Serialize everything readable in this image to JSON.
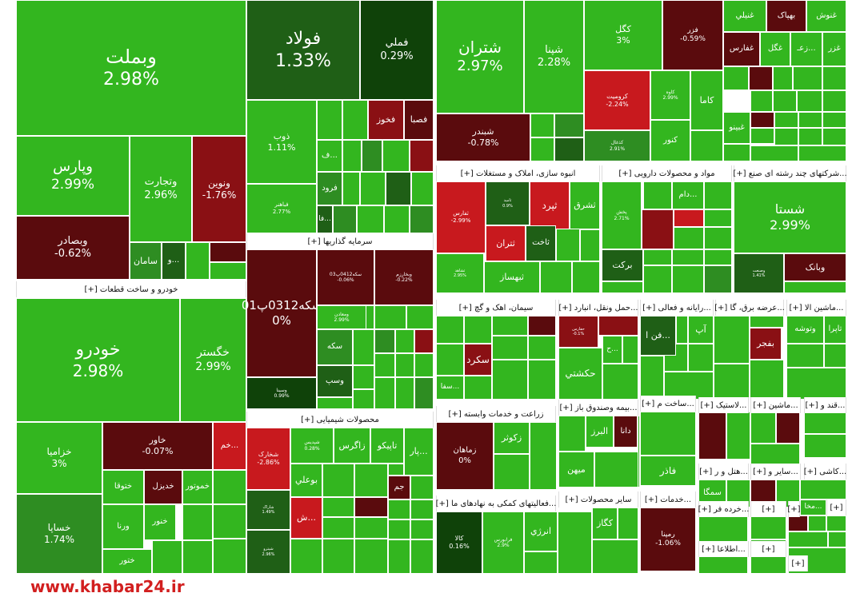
{
  "colors": {
    "green_bright": "#33b61f",
    "green_light": "#3fa92c",
    "green_mid": "#2e8d22",
    "green_dark": "#1f5f16",
    "green_deep": "#0f4209",
    "red_bright": "#c8191e",
    "red_mid": "#8a1014",
    "red_dark": "#5a0b0d"
  },
  "watermark": "www.khabar24.ir",
  "headers": {
    "khodro": "[+] خودرو و ساخت قطعات",
    "sarmaye": "[+] سرمایه گذاریها",
    "shimiaei": "[+] محصولات شیمیایی",
    "anbooh": "[+] انبوه سازی، املاک و مستغلات",
    "mavad": "[+] مواد و محصولات دارویی",
    "chandreshte": "[+] شرکتهای چند رشته ای صنع...",
    "siman": "[+] سیمان، اهک و گچ",
    "hamlonaghl": "[+] حمل ونقل، انبارد...",
    "rayane": "[+] رایانه و فعالی...",
    "arzeh": "[+] عرضه برق، گا...",
    "mashinAlat": "[+] ماشین الا...",
    "zeraat": "[+] زراعت و خدمات وابسته",
    "bimeh": "[+] بیمه وصندوق باز...",
    "sakht": "[+] ساخت م...",
    "lastik": "[+] لاستیک...",
    "mashin2": "[+] ماشین...",
    "ghand": "[+] قند و...",
    "faaliat": "[+] فعالیتهای کمکی به نهادهای ما...",
    "sayer": "[+] سایر محصولات",
    "khadamat": "[+] خدمات...",
    "hotel": "[+] هتل و ر...",
    "sayer2": "[+] سایر و...",
    "kashi": "[+] کاشی...",
    "khordeh": "[+] خرده فر...",
    "etelaa": "[+] اطلاعا...",
    "h1": "[+]",
    "h2": "[+]",
    "h3": "[+]",
    "h4": "[+]",
    "h5": "[+]"
  },
  "tiles": {
    "vebmelat": {
      "name": "وبملت",
      "pct": "2.98%"
    },
    "vepars": {
      "name": "وپارس",
      "pct": "2.99%"
    },
    "vetejarat": {
      "name": "وتجارت",
      "pct": "2.96%"
    },
    "venovin": {
      "name": "ونوین",
      "pct": "-1.76%"
    },
    "vebsader": {
      "name": "وبصادر",
      "pct": "-0.62%"
    },
    "saman": {
      "name": "سامان"
    },
    "ve": {
      "name": "و..."
    },
    "foolad": {
      "name": "فولاد",
      "pct": "1.33%"
    },
    "fameli": {
      "name": "فملي",
      "pct": "0.29%"
    },
    "zob": {
      "name": "ذوب",
      "pct": "1.11%"
    },
    "fakhooz": {
      "name": "فخوز"
    },
    "fesapa": {
      "name": "فصبا"
    },
    "feolad2": {
      "name": "فباهنر",
      "pct": "2.77%"
    },
    "foroud": {
      "name": "فرود"
    },
    "fe1": {
      "name": "ف..."
    },
    "fa": {
      "name": "فا..."
    },
    "shatran": {
      "name": "شتران",
      "pct": "2.97%"
    },
    "shapna": {
      "name": "شپنا",
      "pct": "2.28%"
    },
    "shebandar": {
      "name": "شبندر",
      "pct": "-0.78%"
    },
    "kegel": {
      "name": "کگل",
      "pct": "3%"
    },
    "fazar": {
      "name": "فزر",
      "pct": "-0.59%"
    },
    "koromit": {
      "name": "کرومیت",
      "pct": "-2.24%"
    },
    "kave": {
      "name": "کاوه",
      "pct": "2.99%"
    },
    "kama": {
      "name": "کاما"
    },
    "kanvar": {
      "name": "کنور"
    },
    "kezaghal": {
      "name": "کذغال",
      "pct": "2.91%"
    },
    "ghenoush": {
      "name": "غنوش"
    },
    "bahak": {
      "name": "بهپاک"
    },
    "gheniali": {
      "name": "غنيلي"
    },
    "ghazar": {
      "name": "غزر"
    },
    "zeghaz": {
      "name": "زعـ..."
    },
    "ghegol": {
      "name": "غگل"
    },
    "ghefars": {
      "name": "غفارس"
    },
    "ghebino": {
      "name": "غبينو"
    },
    "khodro": {
      "name": "خودرو",
      "pct": "2.98%"
    },
    "khegostar": {
      "name": "خگستر",
      "pct": "2.99%"
    },
    "khavar": {
      "name": "خاور",
      "pct": "-0.07%"
    },
    "khazamia": {
      "name": "خزامیا",
      "pct": "3%"
    },
    "khesapa": {
      "name": "خساپا",
      "pct": "1.74%"
    },
    "khem": {
      "name": "خم..."
    },
    "khetoga": {
      "name": "ختوقا"
    },
    "khedizel": {
      "name": "خديزل"
    },
    "khemotor": {
      "name": "خموتور"
    },
    "khenor": {
      "name": "خنور"
    },
    "verna": {
      "name": "ورنا"
    },
    "khetor": {
      "name": "ختور"
    },
    "seke": {
      "name": "سکه0312پ01",
      "pct": "0%"
    },
    "seke2": {
      "name": "سکه0412پ03",
      "pct": "-0.06%"
    },
    "vebazar": {
      "name": "وبخارزم",
      "pct": "-0.22%"
    },
    "vesina": {
      "name": "وسینا",
      "pct": "0.99%"
    },
    "vebime": {
      "name": "ومعادن",
      "pct": "2.99%"
    },
    "sekke3": {
      "name": "سکه"
    },
    "vesab": {
      "name": "وسپ"
    },
    "shekhaz": {
      "name": "شخارک",
      "pct": "-2.86%"
    },
    "shepna2": {
      "name": "شپدیس",
      "pct": "0.28%"
    },
    "zagros": {
      "name": "زاگرس"
    },
    "tapiko": {
      "name": "تاپیکو"
    },
    "par": {
      "name": "پار..."
    },
    "boali": {
      "name": "بوعلي"
    },
    "jam": {
      "name": "جم"
    },
    "sham": {
      "name": "ش..."
    },
    "shekord": {
      "name": "شاراک",
      "pct": "1.49%"
    },
    "shevan": {
      "name": "شپترو",
      "pct": "2.96%"
    },
    "tefars": {
      "name": "ثفارس",
      "pct": "-2.99%"
    },
    "tamid": {
      "name": "ثامید",
      "pct": "0.9%"
    },
    "tepird": {
      "name": "ثپرد"
    },
    "tashargh": {
      "name": "ثشرق"
    },
    "tetran": {
      "name": "ثتران"
    },
    "taghit": {
      "name": "ثاخت"
    },
    "tebahsaz": {
      "name": "ثبهساز"
    },
    "teshahed": {
      "name": "ثشاهد",
      "pct": "2.95%"
    },
    "barekat": {
      "name": "برکت"
    },
    "dam": {
      "name": "دام..."
    },
    "pakhsh": {
      "name": "پخش",
      "pct": "2.71%"
    },
    "shasta": {
      "name": "شستا",
      "pct": "2.99%"
    },
    "vebank": {
      "name": "وبانک"
    },
    "vesekhtar": {
      "name": "وصنعت",
      "pct": "1.41%"
    },
    "sekord": {
      "name": "سکرد"
    },
    "sefa": {
      "name": "سفا..."
    },
    "hekeshti": {
      "name": "حکشتي"
    },
    "hefars": {
      "name": "حفارس",
      "pct": "-0.1%"
    },
    "hesh": {
      "name": "ح..."
    },
    "ap": {
      "name": "آپ"
    },
    "fenn": {
      "name": "فن ا..."
    },
    "bejar": {
      "name": "بفجر"
    },
    "taira": {
      "name": "تاپرا"
    },
    "tatoosheh": {
      "name": "وتوشه"
    },
    "zamahan": {
      "name": "زماهان",
      "pct": "0%"
    },
    "zekoser": {
      "name": "زکوثر"
    },
    "albarz": {
      "name": "البرز"
    },
    "dana": {
      "name": "دانا"
    },
    "mihan": {
      "name": "میهن"
    },
    "fazer": {
      "name": "فاذر"
    },
    "kala": {
      "name": "کالا",
      "pct": "0.16%"
    },
    "farabors": {
      "name": "فرابورس",
      "pct": "2.9%"
    },
    "anrezi": {
      "name": "انرژي"
    },
    "kegaz": {
      "name": "کگاز"
    },
    "remeina": {
      "name": "رمپنا",
      "pct": "-1.06%"
    },
    "samega": {
      "name": "سمگا"
    },
    "amkala": {
      "name": "مخا..."
    }
  }
}
